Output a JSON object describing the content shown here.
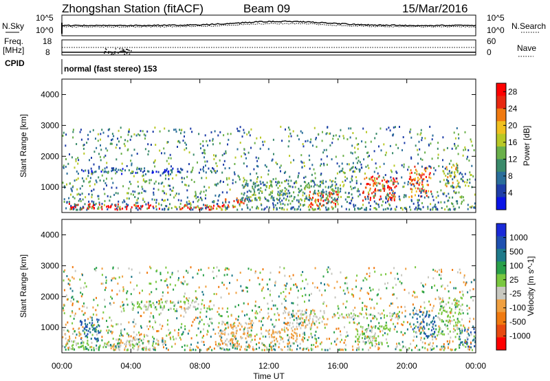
{
  "header": {
    "title": "Zhongshan Station (fitACF)",
    "beam": "Beam 09",
    "date": "15/Mar/2016"
  },
  "mode_text": "normal (fast stereo) 153",
  "left_labels": {
    "nsky": "N.Sky",
    "freq": "Freq.",
    "mhz": "[MHz]",
    "cpid": "CPID"
  },
  "right_labels": {
    "nsearch": "N.Search",
    "nave": "Nave"
  },
  "panel_ticks": {
    "noise_left_top": "10^5",
    "noise_left_bottom": "10^0",
    "noise_right_top": "10^5",
    "noise_right_bottom": "10^0",
    "freq_left_top": "18",
    "freq_left_bottom": "8",
    "nave_right_top": "60",
    "nave_right_bottom": "0"
  },
  "axis": {
    "ylabel": "Slant Range [km]",
    "xlabel": "Time UT",
    "xticks": [
      "00:00",
      "04:00",
      "08:00",
      "12:00",
      "16:00",
      "20:00",
      "00:00"
    ],
    "yticks": [
      "1000",
      "2000",
      "3000",
      "4000"
    ]
  },
  "colors": {
    "power_scale": [
      "#0a14e6",
      "#1e3ea8",
      "#2a6e9a",
      "#3a8a6a",
      "#6ab04a",
      "#b8c826",
      "#f0c020",
      "#f07a10",
      "#e82810",
      "#ff0000"
    ],
    "velocity_scale": [
      "#1a2ad8",
      "#1e50b0",
      "#1e7a8a",
      "#2aa04a",
      "#7ac840",
      "#c8c8c0",
      "#f0a040",
      "#f07a10",
      "#e84a10",
      "#ff0000"
    ]
  },
  "chart_data": [
    {
      "type": "heatmap",
      "title": "Power",
      "quantity": "Power [dB]",
      "xlabel": "Time UT",
      "ylabel": "Slant Range [km]",
      "xlim": [
        "00:00",
        "24:00"
      ],
      "ylim": [
        180,
        4500
      ],
      "colorbar_label": "Power [dB]",
      "colorbar_ticks": [
        "4",
        "8",
        "12",
        "16",
        "20",
        "24",
        "28"
      ],
      "colorbar_range": [
        0,
        30
      ],
      "regions": [
        {
          "t0": 0.1,
          "t1": 1.8,
          "r0": 300,
          "r1": 520,
          "value": 28
        },
        {
          "t0": 1.8,
          "t1": 5.8,
          "r0": 300,
          "r1": 480,
          "value": 29
        },
        {
          "t0": 6.2,
          "t1": 9.3,
          "r0": 300,
          "r1": 460,
          "value": 28
        },
        {
          "t0": 9.3,
          "t1": 10.6,
          "r0": 380,
          "r1": 700,
          "value": 25
        },
        {
          "t0": 14.3,
          "t1": 16.0,
          "r0": 380,
          "r1": 900,
          "value": 26
        },
        {
          "t0": 17.4,
          "t1": 19.4,
          "r0": 600,
          "r1": 1400,
          "value": 26
        },
        {
          "t0": 20.1,
          "t1": 21.4,
          "r0": 700,
          "r1": 1700,
          "value": 24
        },
        {
          "t0": 1.2,
          "t1": 7.2,
          "r0": 1450,
          "r1": 1650,
          "value": 6
        },
        {
          "t0": 8.0,
          "t1": 9.0,
          "r0": 1500,
          "r1": 1700,
          "value": 7
        },
        {
          "t0": 10.4,
          "t1": 16.0,
          "r0": 600,
          "r1": 1250,
          "value": 12
        },
        {
          "t0": 16.0,
          "t1": 17.5,
          "r0": 1500,
          "r1": 1700,
          "value": 8
        },
        {
          "t0": 22.2,
          "t1": 23.0,
          "r0": 1000,
          "r1": 1800,
          "value": 18
        }
      ]
    },
    {
      "type": "heatmap",
      "title": "Velocity",
      "quantity": "Velocity [m s^-1]",
      "xlabel": "Time UT",
      "ylabel": "Slant Range [km]",
      "xlim": [
        "00:00",
        "24:00"
      ],
      "ylim": [
        180,
        4500
      ],
      "colorbar_label": "Velocity [m s^-1]",
      "colorbar_ticks": [
        "1000",
        "500",
        "100",
        "25",
        "-25",
        "-100",
        "-500",
        "-1000"
      ],
      "colorbar_range": [
        -1500,
        1500
      ],
      "regions": [
        {
          "t0": 0.2,
          "t1": 3.0,
          "r0": 300,
          "r1": 600,
          "value": 120
        },
        {
          "t0": 1.0,
          "t1": 2.2,
          "r0": 600,
          "r1": 1300,
          "value": 900
        },
        {
          "t0": 3.0,
          "t1": 6.0,
          "r0": 300,
          "r1": 700,
          "value": -150
        },
        {
          "t0": 4.0,
          "t1": 8.8,
          "r0": 1600,
          "r1": 1900,
          "value": 0
        },
        {
          "t0": 9.0,
          "t1": 11.0,
          "r0": 400,
          "r1": 1200,
          "value": -300
        },
        {
          "t0": 11.8,
          "t1": 14.0,
          "r0": 500,
          "r1": 1000,
          "value": -400
        },
        {
          "t0": 12.8,
          "t1": 15.2,
          "r0": 1000,
          "r1": 1600,
          "value": -250
        },
        {
          "t0": 15.8,
          "t1": 19.6,
          "r0": 1300,
          "r1": 1500,
          "value": 0
        },
        {
          "t0": 17.0,
          "t1": 19.0,
          "r0": 500,
          "r1": 1100,
          "value": 80
        },
        {
          "t0": 20.3,
          "t1": 21.6,
          "r0": 700,
          "r1": 1600,
          "value": 900
        },
        {
          "t0": 21.8,
          "t1": 23.2,
          "r0": 800,
          "r1": 2000,
          "value": 60
        },
        {
          "t0": 23.0,
          "t1": 24.0,
          "r0": 400,
          "r1": 1000,
          "value": 1000
        }
      ]
    }
  ]
}
